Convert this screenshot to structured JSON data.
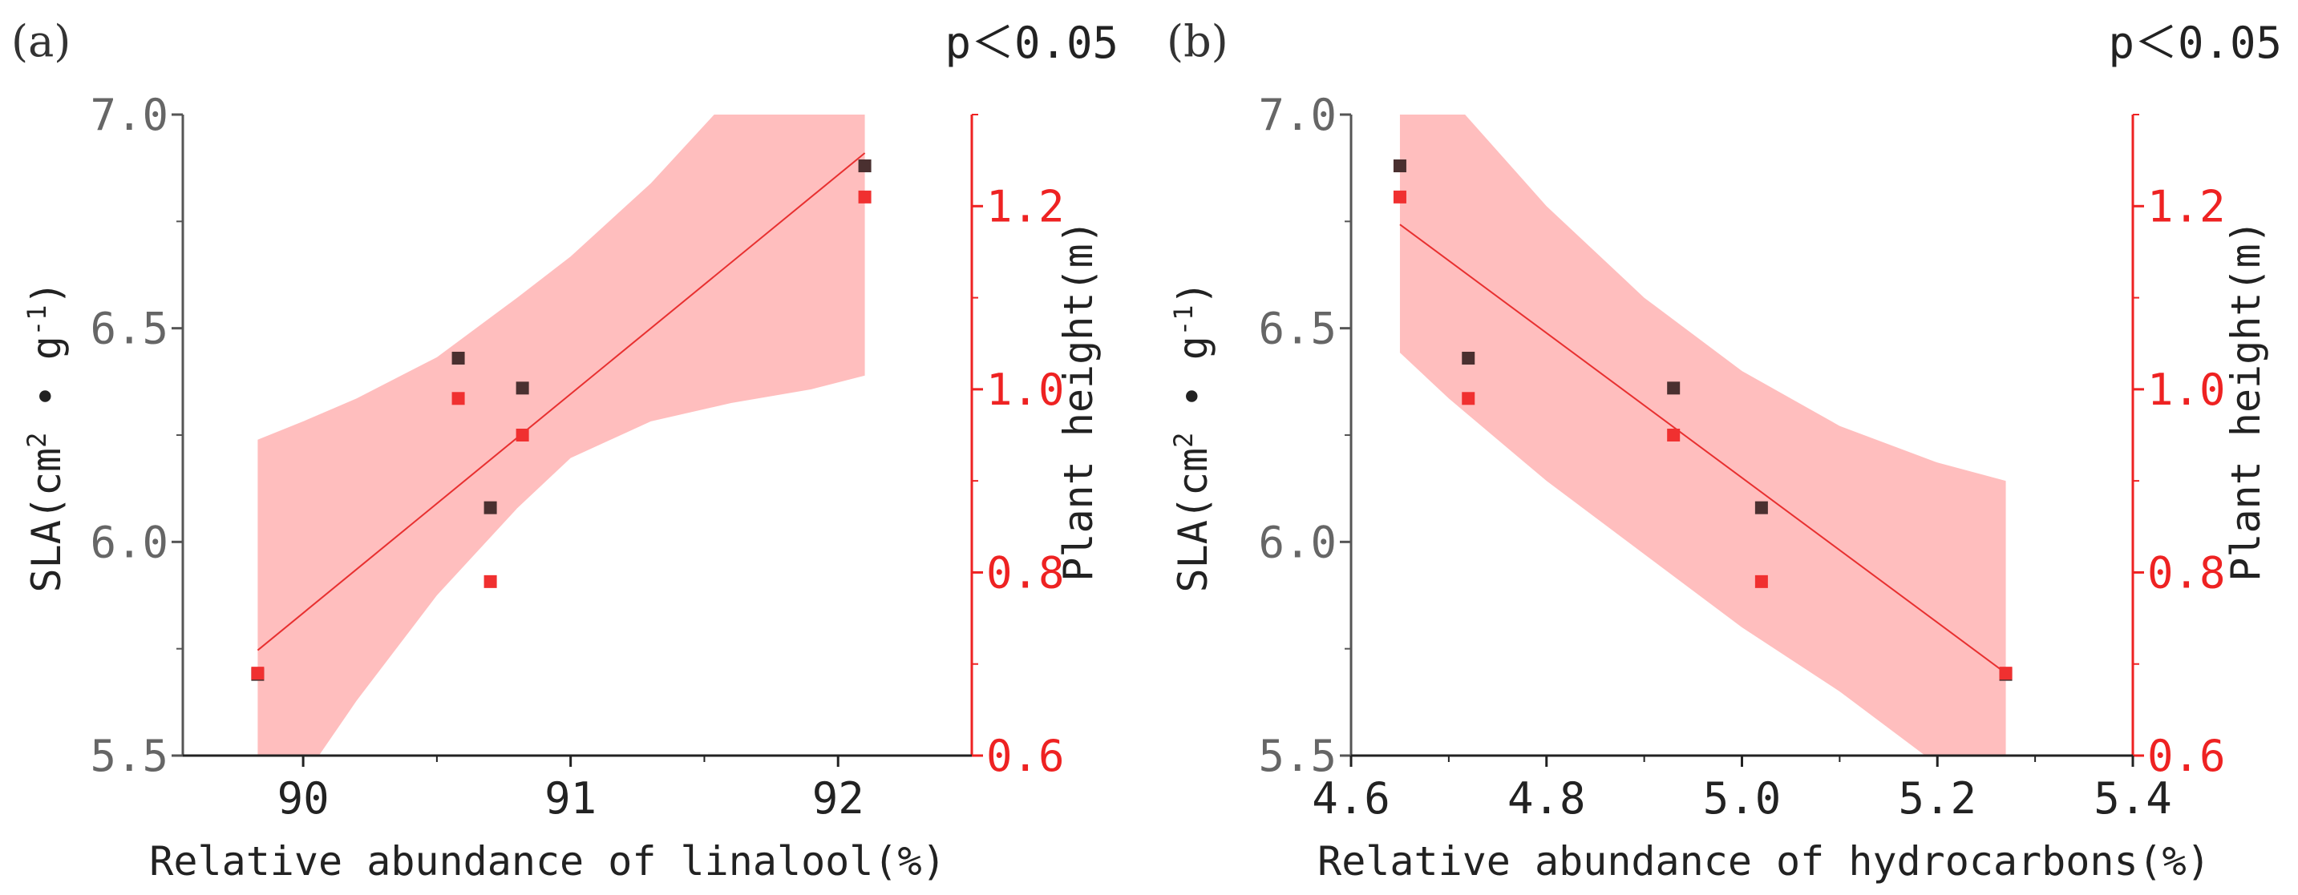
{
  "colors": {
    "left_axis": "#555555",
    "right_axis": "#ee2222",
    "band": "#ffb3b3",
    "fit_line": "#e83030",
    "sla_marker": "#4a3030",
    "height_marker": "#f03030"
  },
  "chart_data": [
    {
      "type": "scatter",
      "panel_label": "(a)",
      "significance": "p＜0.05",
      "xlabel": "Relative abundance of linalool(%)",
      "ylabel_left_main": "SLA(cm",
      "ylabel_left_sup1": "2",
      "ylabel_left_mid": " • g",
      "ylabel_left_sup2": "-1",
      "ylabel_left_end": ")",
      "ylabel_right": "Plant height(m)",
      "xlim": [
        89.55,
        92.5
      ],
      "ylim_left": [
        5.5,
        7.0
      ],
      "ylim_right": [
        0.6,
        1.3
      ],
      "xticks": [
        90,
        91,
        92
      ],
      "xtick_labels": [
        "90",
        "91",
        "92"
      ],
      "yticks_left": [
        5.5,
        6.0,
        6.5,
        7.0
      ],
      "ytick_labels_left": [
        "5.5",
        "6.0",
        "6.5",
        "7.0"
      ],
      "yticks_right": [
        0.6,
        0.8,
        1.0,
        1.2
      ],
      "ytick_labels_right": [
        "0.6",
        "0.8",
        "1.0",
        "1.2"
      ],
      "series": [
        {
          "name": "SLA",
          "axis": "left",
          "x": [
            89.83,
            90.58,
            90.7,
            90.82,
            92.1
          ],
          "y": [
            5.69,
            6.43,
            6.08,
            6.36,
            6.88
          ]
        },
        {
          "name": "Plant height",
          "axis": "right",
          "x": [
            89.83,
            90.58,
            90.7,
            90.82,
            92.1
          ],
          "y": [
            0.69,
            0.99,
            0.79,
            0.95,
            1.21
          ]
        }
      ],
      "fit": {
        "axis": "right",
        "x": [
          89.83,
          92.1
        ],
        "y": [
          0.715,
          1.258
        ]
      },
      "band": {
        "axis": "right",
        "x": [
          89.83,
          90.0,
          90.2,
          90.5,
          90.8,
          91.0,
          91.3,
          91.6,
          91.9,
          92.1
        ],
        "upper": [
          0.945,
          0.965,
          0.99,
          1.035,
          1.1,
          1.145,
          1.225,
          1.32,
          1.32,
          1.32
        ],
        "lower": [
          0.485,
          0.575,
          0.66,
          0.775,
          0.87,
          0.925,
          0.965,
          0.985,
          1.0,
          1.015
        ]
      }
    },
    {
      "type": "scatter",
      "panel_label": "(b)",
      "significance": "p＜0.05",
      "xlabel": "Relative abundance of hydrocarbons(%)",
      "ylabel_left_main": "SLA(cm",
      "ylabel_left_sup1": "2",
      "ylabel_left_mid": " • g",
      "ylabel_left_sup2": "-1",
      "ylabel_left_end": ")",
      "ylabel_right": "Plant height(m)",
      "xlim": [
        4.6,
        5.4
      ],
      "ylim_left": [
        5.5,
        7.0
      ],
      "ylim_right": [
        0.6,
        1.3
      ],
      "xticks": [
        4.6,
        4.8,
        5.0,
        5.2,
        5.4
      ],
      "xtick_labels": [
        "4.6",
        "4.8",
        "5.0",
        "5.2",
        "5.4"
      ],
      "yticks_left": [
        5.5,
        6.0,
        6.5,
        7.0
      ],
      "ytick_labels_left": [
        "5.5",
        "6.0",
        "6.5",
        "7.0"
      ],
      "yticks_right": [
        0.6,
        0.8,
        1.0,
        1.2
      ],
      "ytick_labels_right": [
        "0.6",
        "0.8",
        "1.0",
        "1.2"
      ],
      "series": [
        {
          "name": "SLA",
          "axis": "left",
          "x": [
            4.65,
            4.72,
            4.93,
            5.02,
            5.27
          ],
          "y": [
            6.88,
            6.43,
            6.36,
            6.08,
            5.69
          ]
        },
        {
          "name": "Plant height",
          "axis": "right",
          "x": [
            4.65,
            4.72,
            4.93,
            5.02,
            5.27
          ],
          "y": [
            1.21,
            0.99,
            0.95,
            0.79,
            0.69
          ]
        }
      ],
      "fit": {
        "axis": "right",
        "x": [
          4.65,
          5.27
        ],
        "y": [
          1.18,
          0.69
        ]
      },
      "band": {
        "axis": "right",
        "x": [
          4.65,
          4.7,
          4.8,
          4.9,
          5.0,
          5.1,
          5.2,
          5.27
        ],
        "upper": [
          1.32,
          1.32,
          1.2,
          1.1,
          1.02,
          0.96,
          0.92,
          0.9
        ],
        "lower": [
          1.04,
          0.99,
          0.9,
          0.82,
          0.74,
          0.67,
          0.59,
          0.53
        ]
      }
    }
  ]
}
